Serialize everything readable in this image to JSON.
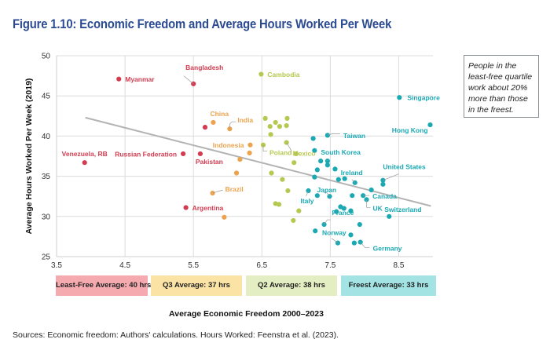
{
  "title": "Figure 1.10: Economic Freedom and Average Hours Worked Per Week",
  "note": "People in the least-free quartile work about 20% more than those in the freest.",
  "quartile_boxes": [
    {
      "label": "Least-Free Average: 40 hrs",
      "color": "#f5aab0"
    },
    {
      "label": "Q3 Average: 37 hrs",
      "color": "#fbe3a6"
    },
    {
      "label": "Q2 Average: 38 hrs",
      "color": "#e3eec2"
    },
    {
      "label": "Freest Average: 33 hrs",
      "color": "#a3e3e3"
    }
  ],
  "source": "Sources: Economic freedom: Authors' calculations. Hours Worked: Feenstra et al. (2023).",
  "chart_data": {
    "type": "scatter",
    "title": "Figure 1.10: Economic Freedom and Average Hours Worked Per Week",
    "xlabel": "Average Economic Freedom 2000–2023",
    "ylabel": "Average Hours Worked Per Week (2019)",
    "xlim": [
      3.5,
      9.0
    ],
    "ylim": [
      25,
      50
    ],
    "xticks": [
      "3.5",
      "4.5",
      "5.5",
      "6.5",
      "7.5",
      "8.5"
    ],
    "yticks": [
      "25",
      "30",
      "35",
      "40",
      "45",
      "50"
    ],
    "grid": true,
    "trendline": {
      "x": [
        3.92,
        8.97
      ],
      "y": [
        42.3,
        31.3
      ],
      "color": "#b3b3b3"
    },
    "series": [
      {
        "name": "Least-Free",
        "color": "#d23c50",
        "points": [
          {
            "x": 4.41,
            "y": 47.1,
            "label": "Myanmar"
          },
          {
            "x": 5.5,
            "y": 46.5,
            "label": "Bangladesh"
          },
          {
            "x": 5.67,
            "y": 41.1,
            "label": ""
          },
          {
            "x": 5.35,
            "y": 37.8,
            "label": "Russian Federation"
          },
          {
            "x": 5.6,
            "y": 37.8,
            "label": "Pakistan"
          },
          {
            "x": 3.91,
            "y": 36.7,
            "label": "Venezuela, RB"
          },
          {
            "x": 5.39,
            "y": 31.1,
            "label": "Argentina"
          }
        ]
      },
      {
        "name": "Q3",
        "color": "#eba34e",
        "points": [
          {
            "x": 5.79,
            "y": 41.7,
            "label": "China"
          },
          {
            "x": 6.03,
            "y": 40.9,
            "label": "India"
          },
          {
            "x": 6.33,
            "y": 38.9,
            "label": "Indonesia"
          },
          {
            "x": 6.32,
            "y": 37.9,
            "label": ""
          },
          {
            "x": 6.18,
            "y": 37.1,
            "label": ""
          },
          {
            "x": 6.13,
            "y": 35.4,
            "label": ""
          },
          {
            "x": 5.78,
            "y": 32.9,
            "label": "Brazil"
          },
          {
            "x": 5.95,
            "y": 29.9,
            "label": ""
          }
        ]
      },
      {
        "name": "Q2",
        "color": "#b7c851",
        "points": [
          {
            "x": 6.49,
            "y": 47.7,
            "label": "Cambodia"
          },
          {
            "x": 6.55,
            "y": 42.2,
            "label": ""
          },
          {
            "x": 6.7,
            "y": 41.7,
            "label": ""
          },
          {
            "x": 6.87,
            "y": 42.2,
            "label": ""
          },
          {
            "x": 6.62,
            "y": 41.2,
            "label": ""
          },
          {
            "x": 6.76,
            "y": 41.2,
            "label": ""
          },
          {
            "x": 6.86,
            "y": 41.3,
            "label": ""
          },
          {
            "x": 6.63,
            "y": 40.2,
            "label": ""
          },
          {
            "x": 6.86,
            "y": 39.2,
            "label": "Mexico"
          },
          {
            "x": 6.52,
            "y": 38.9,
            "label": "Poland"
          },
          {
            "x": 7.0,
            "y": 37.8,
            "label": ""
          },
          {
            "x": 6.97,
            "y": 36.7,
            "label": ""
          },
          {
            "x": 6.64,
            "y": 35.4,
            "label": ""
          },
          {
            "x": 6.8,
            "y": 34.6,
            "label": ""
          },
          {
            "x": 6.88,
            "y": 33.2,
            "label": ""
          },
          {
            "x": 6.7,
            "y": 31.6,
            "label": ""
          },
          {
            "x": 6.75,
            "y": 31.5,
            "label": ""
          },
          {
            "x": 7.04,
            "y": 30.7,
            "label": ""
          },
          {
            "x": 6.96,
            "y": 29.5,
            "label": ""
          }
        ]
      },
      {
        "name": "Freest",
        "color": "#1aa9b3",
        "points": [
          {
            "x": 8.51,
            "y": 44.8,
            "label": "Singapore"
          },
          {
            "x": 8.96,
            "y": 41.4,
            "label": "Hong Kong"
          },
          {
            "x": 7.25,
            "y": 39.7,
            "label": ""
          },
          {
            "x": 7.46,
            "y": 40.1,
            "label": "Taiwan"
          },
          {
            "x": 7.27,
            "y": 38.2,
            "label": "South Korea"
          },
          {
            "x": 7.36,
            "y": 36.9,
            "label": ""
          },
          {
            "x": 7.46,
            "y": 36.9,
            "label": ""
          },
          {
            "x": 7.46,
            "y": 36.4,
            "label": ""
          },
          {
            "x": 7.31,
            "y": 35.8,
            "label": ""
          },
          {
            "x": 7.57,
            "y": 35.9,
            "label": ""
          },
          {
            "x": 7.27,
            "y": 34.9,
            "label": ""
          },
          {
            "x": 7.62,
            "y": 34.6,
            "label": ""
          },
          {
            "x": 7.71,
            "y": 34.7,
            "label": ""
          },
          {
            "x": 7.86,
            "y": 34.2,
            "label": "Ireland"
          },
          {
            "x": 8.27,
            "y": 34.5,
            "label": "United States"
          },
          {
            "x": 8.27,
            "y": 34.0,
            "label": ""
          },
          {
            "x": 8.1,
            "y": 33.3,
            "label": ""
          },
          {
            "x": 7.18,
            "y": 33.2,
            "label": "Italy"
          },
          {
            "x": 7.31,
            "y": 32.6,
            "label": ""
          },
          {
            "x": 7.49,
            "y": 32.5,
            "label": "Japan"
          },
          {
            "x": 7.82,
            "y": 32.6,
            "label": ""
          },
          {
            "x": 7.98,
            "y": 32.6,
            "label": "Canada"
          },
          {
            "x": 8.03,
            "y": 32.1,
            "label": "UK"
          },
          {
            "x": 7.65,
            "y": 31.2,
            "label": ""
          },
          {
            "x": 7.7,
            "y": 31.0,
            "label": ""
          },
          {
            "x": 7.59,
            "y": 30.6,
            "label": ""
          },
          {
            "x": 7.8,
            "y": 30.7,
            "label": ""
          },
          {
            "x": 8.36,
            "y": 30.0,
            "label": "Switzerland"
          },
          {
            "x": 7.41,
            "y": 29.0,
            "label": "France"
          },
          {
            "x": 7.93,
            "y": 29.0,
            "label": ""
          },
          {
            "x": 7.28,
            "y": 28.2,
            "label": ""
          },
          {
            "x": 7.8,
            "y": 27.7,
            "label": ""
          },
          {
            "x": 7.61,
            "y": 26.7,
            "label": "Norway"
          },
          {
            "x": 7.85,
            "y": 26.7,
            "label": ""
          },
          {
            "x": 7.94,
            "y": 26.8,
            "label": "Germany"
          }
        ]
      }
    ]
  }
}
